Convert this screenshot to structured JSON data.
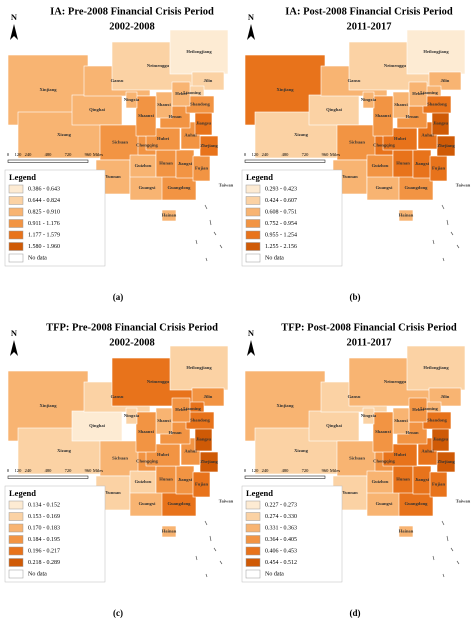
{
  "north": "N",
  "scale_labels": [
    "0",
    "120",
    "240",
    "480",
    "720",
    "960",
    "Miles"
  ],
  "provinces": [
    "Xinjiang",
    "Xizang",
    "Qinghai",
    "Gansu",
    "Neimenggu",
    "Heilongjiang",
    "Jilin",
    "Liaoning",
    "Sichuan",
    "Yunnan",
    "Guangxi",
    "Guangdong",
    "Guizhou",
    "Chongqing",
    "Hunan",
    "Jiangxi",
    "Fujian",
    "Zhejiang",
    "Anhui",
    "Jiangsu",
    "Hubei",
    "Henan",
    "Shandong",
    "Hebei",
    "Shanxi",
    "Shaanxi",
    "Ningxia",
    "Hainan",
    "Taiwan"
  ],
  "panels": [
    {
      "title": "IA: Pre-2008 Financial Crisis Period",
      "period": "2002-2008",
      "legend_title": "Legend",
      "caption": "(a)",
      "legend": [
        {
          "label": "0.386 - 0.643",
          "color": "#fdebd3"
        },
        {
          "label": "0.644 - 0.824",
          "color": "#fbd2a4"
        },
        {
          "label": "0.825 - 0.910",
          "color": "#f8b472"
        },
        {
          "label": "0.911 - 1.176",
          "color": "#f29443"
        },
        {
          "label": "1.177 - 1.579",
          "color": "#e8731b"
        },
        {
          "label": "1.580 - 1.960",
          "color": "#cf5a06"
        },
        {
          "label": "No data",
          "color": "#ffffff"
        }
      ],
      "province_class": [
        2,
        2,
        2,
        2,
        1,
        0,
        1,
        1,
        3,
        2,
        2,
        3,
        2,
        3,
        3,
        3,
        3,
        4,
        3,
        4,
        3,
        3,
        3,
        2,
        2,
        3,
        2,
        2,
        6
      ]
    },
    {
      "title": "IA: Post-2008 Financial Crisis Period",
      "period": "2011-2017",
      "legend_title": "Legend",
      "caption": "(b)",
      "legend": [
        {
          "label": "0.293 - 0.423",
          "color": "#fdebd3"
        },
        {
          "label": "0.424 - 0.607",
          "color": "#fbd2a4"
        },
        {
          "label": "0.608 - 0.751",
          "color": "#f8b472"
        },
        {
          "label": "0.752 - 0.954",
          "color": "#f29443"
        },
        {
          "label": "0.955 - 1.254",
          "color": "#e8731b"
        },
        {
          "label": "1.255 - 2.156",
          "color": "#cf5a06"
        },
        {
          "label": "No data",
          "color": "#ffffff"
        }
      ],
      "province_class": [
        4,
        1,
        1,
        2,
        1,
        0,
        2,
        2,
        3,
        2,
        2,
        3,
        3,
        4,
        4,
        4,
        4,
        5,
        4,
        5,
        4,
        3,
        4,
        2,
        2,
        3,
        2,
        2,
        6
      ]
    },
    {
      "title": "TFP: Pre-2008 Financial Crisis Period",
      "period": "2002-2008",
      "legend_title": "Legend",
      "caption": "(c)",
      "legend": [
        {
          "label": "0.134 - 0.152",
          "color": "#fdebd3"
        },
        {
          "label": "0.153 - 0.169",
          "color": "#fbd2a4"
        },
        {
          "label": "0.170 - 0.183",
          "color": "#f8b472"
        },
        {
          "label": "0.184 - 0.195",
          "color": "#f29443"
        },
        {
          "label": "0.196 - 0.217",
          "color": "#e8731b"
        },
        {
          "label": "0.218 - 0.289",
          "color": "#cf5a06"
        },
        {
          "label": "No data",
          "color": "#ffffff"
        }
      ],
      "province_class": [
        2,
        1,
        0,
        1,
        4,
        1,
        3,
        4,
        2,
        1,
        2,
        4,
        1,
        3,
        3,
        3,
        4,
        5,
        3,
        5,
        3,
        3,
        4,
        3,
        2,
        3,
        1,
        2,
        6
      ]
    },
    {
      "title": "TFP: Post-2008 Financial Crisis Period",
      "period": "2011-2017",
      "legend_title": "Legend",
      "caption": "(d)",
      "legend": [
        {
          "label": "0.227 - 0.273",
          "color": "#fdebd3"
        },
        {
          "label": "0.274 - 0.330",
          "color": "#fbd2a4"
        },
        {
          "label": "0.331 - 0.363",
          "color": "#f8b472"
        },
        {
          "label": "0.364 - 0.405",
          "color": "#f29443"
        },
        {
          "label": "0.406 - 0.453",
          "color": "#e8731b"
        },
        {
          "label": "0.454 - 0.512",
          "color": "#cf5a06"
        },
        {
          "label": "No data",
          "color": "#ffffff"
        }
      ],
      "province_class": [
        2,
        1,
        1,
        1,
        2,
        1,
        2,
        2,
        2,
        1,
        2,
        4,
        2,
        3,
        4,
        4,
        4,
        5,
        4,
        5,
        4,
        3,
        4,
        3,
        2,
        3,
        1,
        2,
        6
      ]
    }
  ]
}
